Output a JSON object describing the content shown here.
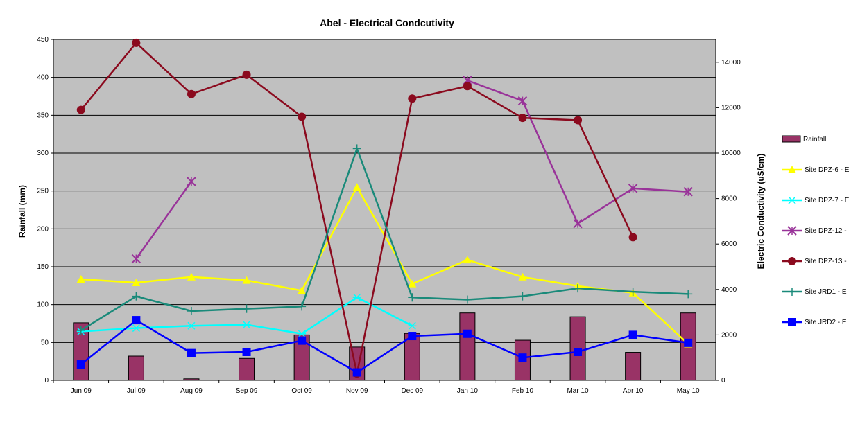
{
  "chart_data": {
    "type": "bar",
    "title": "Abel - Electrical Condcutivity",
    "ylabel": "Rainfall (mm)",
    "y2label": "Electric Conductivity  (uS/cm)",
    "categories": [
      "Jun 09",
      "Jul 09",
      "Aug 09",
      "Sep 09",
      "Oct 09",
      "Nov 09",
      "Dec 09",
      "Jan 10",
      "Feb 10",
      "Mar 10",
      "Apr 10",
      "May 10"
    ],
    "ylim": [
      0,
      450
    ],
    "yticks": [
      0,
      50,
      100,
      150,
      200,
      250,
      300,
      350,
      400,
      450
    ],
    "y2lim": [
      0,
      15000
    ],
    "y2ticks": [
      0,
      2000,
      4000,
      6000,
      8000,
      10000,
      12000,
      14000
    ],
    "grid": true,
    "legend_position": "right",
    "plot_background": "#c0c0c0",
    "bars": {
      "name": "Rainfall",
      "color": "#993366",
      "axis": "left",
      "values": [
        76,
        32,
        2,
        29,
        60,
        44,
        62,
        89,
        53,
        84,
        37,
        89
      ]
    },
    "series": [
      {
        "name": "Site DPZ-6 - E",
        "color": "#ffff00",
        "marker": "triangle",
        "axis": "right",
        "values": [
          4450,
          4300,
          4550,
          4400,
          3950,
          8500,
          4250,
          5300,
          4550,
          4150,
          3850,
          1600
        ]
      },
      {
        "name": "Site DPZ-7 - E",
        "color": "#00ffff",
        "marker": "star",
        "axis": "right",
        "values": [
          2150,
          2300,
          2400,
          2450,
          2050,
          3650,
          2400,
          null,
          null,
          null,
          null,
          null
        ]
      },
      {
        "name": "Site DPZ-12 -",
        "color": "#993399",
        "marker": "x",
        "axis": "right",
        "values": [
          null,
          5350,
          8750,
          null,
          null,
          null,
          null,
          13200,
          12300,
          6900,
          8450,
          8300
        ]
      },
      {
        "name": "Site DPZ-13 -",
        "color": "#8b0a1e",
        "marker": "circle",
        "axis": "right",
        "values": [
          11900,
          14850,
          12600,
          13450,
          11600,
          300,
          12400,
          12950,
          11550,
          11450,
          6300,
          null
        ]
      },
      {
        "name": "Site JRD1 - E",
        "color": "#1a8a7a",
        "marker": "plus",
        "axis": "right",
        "values": [
          2200,
          3700,
          3050,
          3150,
          3250,
          10200,
          3650,
          3550,
          3700,
          4050,
          3900,
          3800
        ]
      },
      {
        "name": "Site JRD2 - E",
        "color": "#0000ff",
        "marker": "square",
        "axis": "right",
        "values": [
          700,
          2650,
          1200,
          1250,
          1750,
          350,
          1950,
          2050,
          1000,
          1250,
          2000,
          1650
        ]
      }
    ]
  }
}
